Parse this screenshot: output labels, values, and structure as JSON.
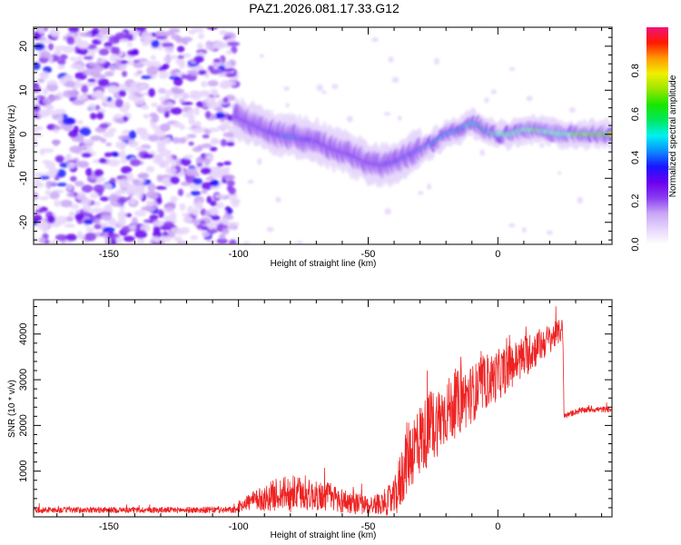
{
  "title": "PAZ1.2026.081.17.33.G12",
  "chart_data": [
    {
      "type": "heatmap",
      "name": "spectrogram",
      "xlabel": "Height of straight line (km)",
      "ylabel": "Frequency (Hz)",
      "xlim": [
        -179,
        44
      ],
      "ylim": [
        -25,
        24.3
      ],
      "xticks": [
        -150,
        -100,
        -50,
        0
      ],
      "xtick_labels": [
        "-150",
        "-100",
        "-50",
        "0"
      ],
      "yticks": [
        -20,
        -10,
        0,
        10,
        20
      ],
      "ytick_labels": [
        "-20",
        "-10",
        "0",
        "10",
        "20"
      ],
      "colorbar": {
        "label": "Normalized spectral amplitude",
        "range": [
          0,
          1
        ],
        "ticks": [
          0.0,
          0.2,
          0.4,
          0.6,
          0.8
        ],
        "tick_labels": [
          "0.0",
          "0.2",
          "0.4",
          "0.6",
          "0.8"
        ],
        "colormap": [
          "#ffffff",
          "#e6d5fb",
          "#c9a6f5",
          "#8a3cf0",
          "#6a00f0",
          "#1a14ff",
          "#0a8cff",
          "#00f0f0",
          "#00e860",
          "#19e600",
          "#9ae600",
          "#f0f000",
          "#ff9a00",
          "#ff1a00",
          "#f0127a"
        ]
      },
      "noise_region_x": [
        -179,
        -101
      ],
      "signal_ridge": {
        "x": [
          -101,
          -95,
          -90,
          -85,
          -80,
          -75,
          -70,
          -65,
          -60,
          -55,
          -50,
          -45,
          -40,
          -35,
          -30,
          -25,
          -20,
          -15,
          -10,
          -7,
          -4,
          0,
          5,
          10,
          15,
          20,
          25,
          30,
          35,
          40,
          44
        ],
        "freq": [
          4,
          2.5,
          1,
          0,
          -0.5,
          -1,
          -1.5,
          -3,
          -4,
          -5,
          -6.5,
          -7,
          -6.5,
          -5,
          -3.5,
          -2,
          0,
          1,
          2.5,
          2,
          0.5,
          0,
          0,
          1,
          1,
          0.5,
          0,
          0,
          0,
          0,
          0
        ],
        "amplitude": [
          0.3,
          0.35,
          0.35,
          0.4,
          0.55,
          0.4,
          0.35,
          0.35,
          0.3,
          0.35,
          0.3,
          0.35,
          0.4,
          0.45,
          0.45,
          0.5,
          0.55,
          0.6,
          0.65,
          0.6,
          0.6,
          0.75,
          0.85,
          0.8,
          0.9,
          0.75,
          0.8,
          0.9,
          0.9,
          0.9,
          0.9
        ]
      }
    },
    {
      "type": "line",
      "name": "snr",
      "xlabel": "Height of straight line (km)",
      "ylabel": "SNR (10 * v/v)",
      "xlim": [
        -179,
        44
      ],
      "ylim": [
        0,
        4750
      ],
      "xticks": [
        -150,
        -100,
        -50,
        0
      ],
      "xtick_labels": [
        "-150",
        "-100",
        "-50",
        "0"
      ],
      "yticks": [
        1000,
        2000,
        3000,
        4000
      ],
      "ytick_labels": [
        "1000",
        "2000",
        "3000",
        "4000"
      ],
      "color": "#ee2222",
      "series": [
        {
          "name": "SNR envelope",
          "x": [
            -179,
            -150,
            -120,
            -101,
            -98,
            -90,
            -85,
            -80,
            -75,
            -70,
            -65,
            -60,
            -55,
            -50,
            -45,
            -40,
            -38,
            -35,
            -30,
            -25,
            -20,
            -15,
            -10,
            -5,
            0,
            5,
            10,
            15,
            20,
            25,
            25.5,
            30,
            35,
            40,
            44
          ],
          "base": [
            150,
            150,
            150,
            150,
            300,
            400,
            500,
            500,
            500,
            450,
            450,
            350,
            300,
            250,
            300,
            400,
            700,
            1300,
            1700,
            2000,
            2300,
            2500,
            2700,
            2900,
            3100,
            3300,
            3500,
            3700,
            3900,
            4100,
            2200,
            2300,
            2350,
            2350,
            2350
          ],
          "noise": [
            80,
            80,
            80,
            90,
            200,
            350,
            450,
            500,
            450,
            400,
            400,
            350,
            300,
            250,
            300,
            500,
            800,
            1000,
            1000,
            1000,
            900,
            900,
            800,
            700,
            700,
            600,
            600,
            500,
            400,
            300,
            80,
            80,
            80,
            80,
            80
          ]
        }
      ]
    }
  ]
}
